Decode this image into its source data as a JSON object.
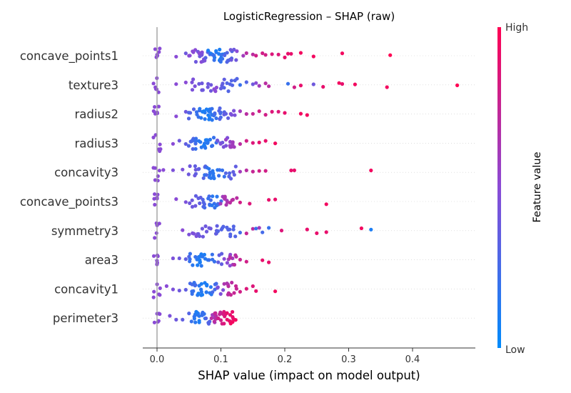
{
  "chart_data": {
    "type": "scatter",
    "subtype": "shap-beeswarm",
    "title": "LogisticRegression – SHAP (raw)",
    "xlabel": "SHAP value (impact on model output)",
    "xlim": [
      -0.02,
      0.5
    ],
    "x_ticks": [
      "0.0",
      "0.1",
      "0.2",
      "0.3",
      "0.4"
    ],
    "x_tick_values": [
      0,
      0.1,
      0.2,
      0.3,
      0.4
    ],
    "features": [
      "concave_points1",
      "texture3",
      "radius2",
      "radius3",
      "concavity3",
      "concave_points3",
      "symmetry3",
      "area3",
      "concavity1",
      "perimeter3"
    ],
    "colorbar": {
      "label": "Feature value",
      "high": "High",
      "low": "Low",
      "low_color": "#008bfb",
      "high_color": "#ff0052"
    },
    "grid": false,
    "series": [
      {
        "feature": "concave_points1",
        "points": [
          [
            0,
            0.5
          ],
          [
            0.03,
            0.5
          ],
          [
            0.045,
            0.4
          ],
          [
            0.05,
            0.5
          ],
          [
            0.055,
            0.5
          ],
          [
            0.065,
            0.4
          ],
          [
            0.07,
            0.5
          ],
          [
            0.075,
            0.45
          ],
          [
            0.08,
            0.3
          ],
          [
            0.085,
            0.1
          ],
          [
            0.09,
            0.2
          ],
          [
            0.095,
            0.1
          ],
          [
            0.1,
            0.1
          ],
          [
            0.105,
            0.2
          ],
          [
            0.11,
            0.3
          ],
          [
            0.115,
            0.3
          ],
          [
            0.12,
            0.4
          ],
          [
            0.125,
            0.5
          ],
          [
            0.135,
            0.6
          ],
          [
            0.14,
            0.7
          ],
          [
            0.15,
            0.7
          ],
          [
            0.155,
            0.8
          ],
          [
            0.165,
            0.8
          ],
          [
            0.17,
            0.8
          ],
          [
            0.18,
            0.85
          ],
          [
            0.19,
            0.85
          ],
          [
            0.2,
            0.9
          ],
          [
            0.205,
            0.9
          ],
          [
            0.21,
            0.9
          ],
          [
            0.225,
            0.95
          ],
          [
            0.245,
            0.95
          ],
          [
            0.29,
            0.95
          ],
          [
            0.365,
            1.0
          ]
        ]
      },
      {
        "feature": "texture3",
        "points": [
          [
            0,
            0.5
          ],
          [
            0.03,
            0.5
          ],
          [
            0.045,
            0.5
          ],
          [
            0.06,
            0.45
          ],
          [
            0.07,
            0.4
          ],
          [
            0.08,
            0.4
          ],
          [
            0.09,
            0.5
          ],
          [
            0.1,
            0.35
          ],
          [
            0.11,
            0.3
          ],
          [
            0.12,
            0.3
          ],
          [
            0.13,
            0.2
          ],
          [
            0.14,
            0.3
          ],
          [
            0.15,
            0.4
          ],
          [
            0.155,
            0.5
          ],
          [
            0.16,
            0.6
          ],
          [
            0.17,
            0.7
          ],
          [
            0.175,
            0.7
          ],
          [
            0.205,
            0.2
          ],
          [
            0.215,
            0.8
          ],
          [
            0.225,
            0.9
          ],
          [
            0.245,
            0.4
          ],
          [
            0.26,
            0.9
          ],
          [
            0.285,
            0.95
          ],
          [
            0.29,
            0.9
          ],
          [
            0.31,
            0.95
          ],
          [
            0.36,
            0.95
          ],
          [
            0.47,
            1.0
          ]
        ]
      },
      {
        "feature": "radius2",
        "points": [
          [
            0,
            0.5
          ],
          [
            0.03,
            0.5
          ],
          [
            0.045,
            0.4
          ],
          [
            0.055,
            0.3
          ],
          [
            0.065,
            0.2
          ],
          [
            0.07,
            0.15
          ],
          [
            0.075,
            0.1
          ],
          [
            0.08,
            0.1
          ],
          [
            0.085,
            0.15
          ],
          [
            0.09,
            0.2
          ],
          [
            0.095,
            0.25
          ],
          [
            0.1,
            0.3
          ],
          [
            0.11,
            0.35
          ],
          [
            0.12,
            0.45
          ],
          [
            0.13,
            0.6
          ],
          [
            0.14,
            0.7
          ],
          [
            0.15,
            0.75
          ],
          [
            0.16,
            0.8
          ],
          [
            0.17,
            0.8
          ],
          [
            0.18,
            0.85
          ],
          [
            0.19,
            0.85
          ],
          [
            0.2,
            0.9
          ],
          [
            0.225,
            0.95
          ],
          [
            0.235,
            0.95
          ]
        ]
      },
      {
        "feature": "radius3",
        "points": [
          [
            0,
            0.5
          ],
          [
            0.025,
            0.5
          ],
          [
            0.035,
            0.4
          ],
          [
            0.045,
            0.35
          ],
          [
            0.055,
            0.3
          ],
          [
            0.06,
            0.25
          ],
          [
            0.065,
            0.2
          ],
          [
            0.07,
            0.15
          ],
          [
            0.075,
            0.1
          ],
          [
            0.08,
            0.15
          ],
          [
            0.09,
            0.2
          ],
          [
            0.1,
            0.4
          ],
          [
            0.105,
            0.45
          ],
          [
            0.11,
            0.55
          ],
          [
            0.12,
            0.6
          ],
          [
            0.13,
            0.7
          ],
          [
            0.14,
            0.8
          ],
          [
            0.15,
            0.85
          ],
          [
            0.16,
            0.9
          ],
          [
            0.17,
            0.9
          ],
          [
            0.185,
            0.95
          ]
        ]
      },
      {
        "feature": "concavity3",
        "points": [
          [
            0,
            0.5
          ],
          [
            0.01,
            0.5
          ],
          [
            0.025,
            0.45
          ],
          [
            0.04,
            0.45
          ],
          [
            0.055,
            0.4
          ],
          [
            0.065,
            0.35
          ],
          [
            0.075,
            0.3
          ],
          [
            0.08,
            0.2
          ],
          [
            0.085,
            0.15
          ],
          [
            0.09,
            0.15
          ],
          [
            0.1,
            0.2
          ],
          [
            0.11,
            0.3
          ],
          [
            0.12,
            0.35
          ],
          [
            0.13,
            0.6
          ],
          [
            0.14,
            0.7
          ],
          [
            0.15,
            0.75
          ],
          [
            0.16,
            0.8
          ],
          [
            0.17,
            0.8
          ],
          [
            0.21,
            0.9
          ],
          [
            0.215,
            0.9
          ],
          [
            0.335,
            0.95
          ]
        ]
      },
      {
        "feature": "concave_points3",
        "points": [
          [
            0,
            0.5
          ],
          [
            0.03,
            0.5
          ],
          [
            0.045,
            0.45
          ],
          [
            0.055,
            0.4
          ],
          [
            0.065,
            0.35
          ],
          [
            0.07,
            0.3
          ],
          [
            0.08,
            0.25
          ],
          [
            0.085,
            0.2
          ],
          [
            0.09,
            0.15
          ],
          [
            0.1,
            0.25
          ],
          [
            0.105,
            0.6
          ],
          [
            0.11,
            0.65
          ],
          [
            0.12,
            0.7
          ],
          [
            0.13,
            0.8
          ],
          [
            0.145,
            0.85
          ],
          [
            0.175,
            0.9
          ],
          [
            0.185,
            0.9
          ],
          [
            0.265,
            0.95
          ]
        ]
      },
      {
        "feature": "symmetry3",
        "points": [
          [
            0,
            0.5
          ],
          [
            0.04,
            0.5
          ],
          [
            0.05,
            0.45
          ],
          [
            0.06,
            0.45
          ],
          [
            0.07,
            0.4
          ],
          [
            0.08,
            0.4
          ],
          [
            0.09,
            0.35
          ],
          [
            0.1,
            0.3
          ],
          [
            0.11,
            0.3
          ],
          [
            0.12,
            0.3
          ],
          [
            0.13,
            0.25
          ],
          [
            0.14,
            0.75
          ],
          [
            0.15,
            0.7
          ],
          [
            0.155,
            0.2
          ],
          [
            0.16,
            0.6
          ],
          [
            0.165,
            0.25
          ],
          [
            0.175,
            0.2
          ],
          [
            0.195,
            0.85
          ],
          [
            0.235,
            0.9
          ],
          [
            0.25,
            0.9
          ],
          [
            0.265,
            0.9
          ],
          [
            0.32,
            0.95
          ],
          [
            0.335,
            0.1
          ]
        ]
      },
      {
        "feature": "area3",
        "points": [
          [
            0,
            0.5
          ],
          [
            0.025,
            0.45
          ],
          [
            0.035,
            0.4
          ],
          [
            0.045,
            0.35
          ],
          [
            0.05,
            0.3
          ],
          [
            0.055,
            0.2
          ],
          [
            0.06,
            0.15
          ],
          [
            0.065,
            0.1
          ],
          [
            0.07,
            0.1
          ],
          [
            0.075,
            0.15
          ],
          [
            0.085,
            0.2
          ],
          [
            0.1,
            0.35
          ],
          [
            0.11,
            0.5
          ],
          [
            0.115,
            0.6
          ],
          [
            0.12,
            0.7
          ],
          [
            0.13,
            0.75
          ],
          [
            0.14,
            0.8
          ],
          [
            0.165,
            0.9
          ],
          [
            0.175,
            0.9
          ]
        ]
      },
      {
        "feature": "concavity1",
        "points": [
          [
            0,
            0.5
          ],
          [
            0.015,
            0.5
          ],
          [
            0.025,
            0.45
          ],
          [
            0.035,
            0.4
          ],
          [
            0.045,
            0.35
          ],
          [
            0.055,
            0.25
          ],
          [
            0.06,
            0.2
          ],
          [
            0.065,
            0.15
          ],
          [
            0.07,
            0.1
          ],
          [
            0.075,
            0.1
          ],
          [
            0.08,
            0.15
          ],
          [
            0.09,
            0.25
          ],
          [
            0.1,
            0.45
          ],
          [
            0.11,
            0.65
          ],
          [
            0.115,
            0.7
          ],
          [
            0.12,
            0.75
          ],
          [
            0.13,
            0.8
          ],
          [
            0.14,
            0.85
          ],
          [
            0.15,
            0.85
          ],
          [
            0.155,
            0.9
          ],
          [
            0.185,
            0.95
          ]
        ]
      },
      {
        "feature": "perimeter3",
        "points": [
          [
            0,
            0.5
          ],
          [
            0.02,
            0.45
          ],
          [
            0.03,
            0.4
          ],
          [
            0.04,
            0.35
          ],
          [
            0.05,
            0.3
          ],
          [
            0.055,
            0.2
          ],
          [
            0.06,
            0.15
          ],
          [
            0.065,
            0.1
          ],
          [
            0.07,
            0.15
          ],
          [
            0.075,
            0.2
          ],
          [
            0.08,
            0.3
          ],
          [
            0.085,
            0.6
          ],
          [
            0.09,
            0.7
          ],
          [
            0.095,
            0.75
          ],
          [
            0.1,
            0.8
          ],
          [
            0.105,
            0.85
          ],
          [
            0.11,
            0.9
          ],
          [
            0.115,
            0.9
          ],
          [
            0.12,
            0.95
          ]
        ]
      }
    ]
  }
}
